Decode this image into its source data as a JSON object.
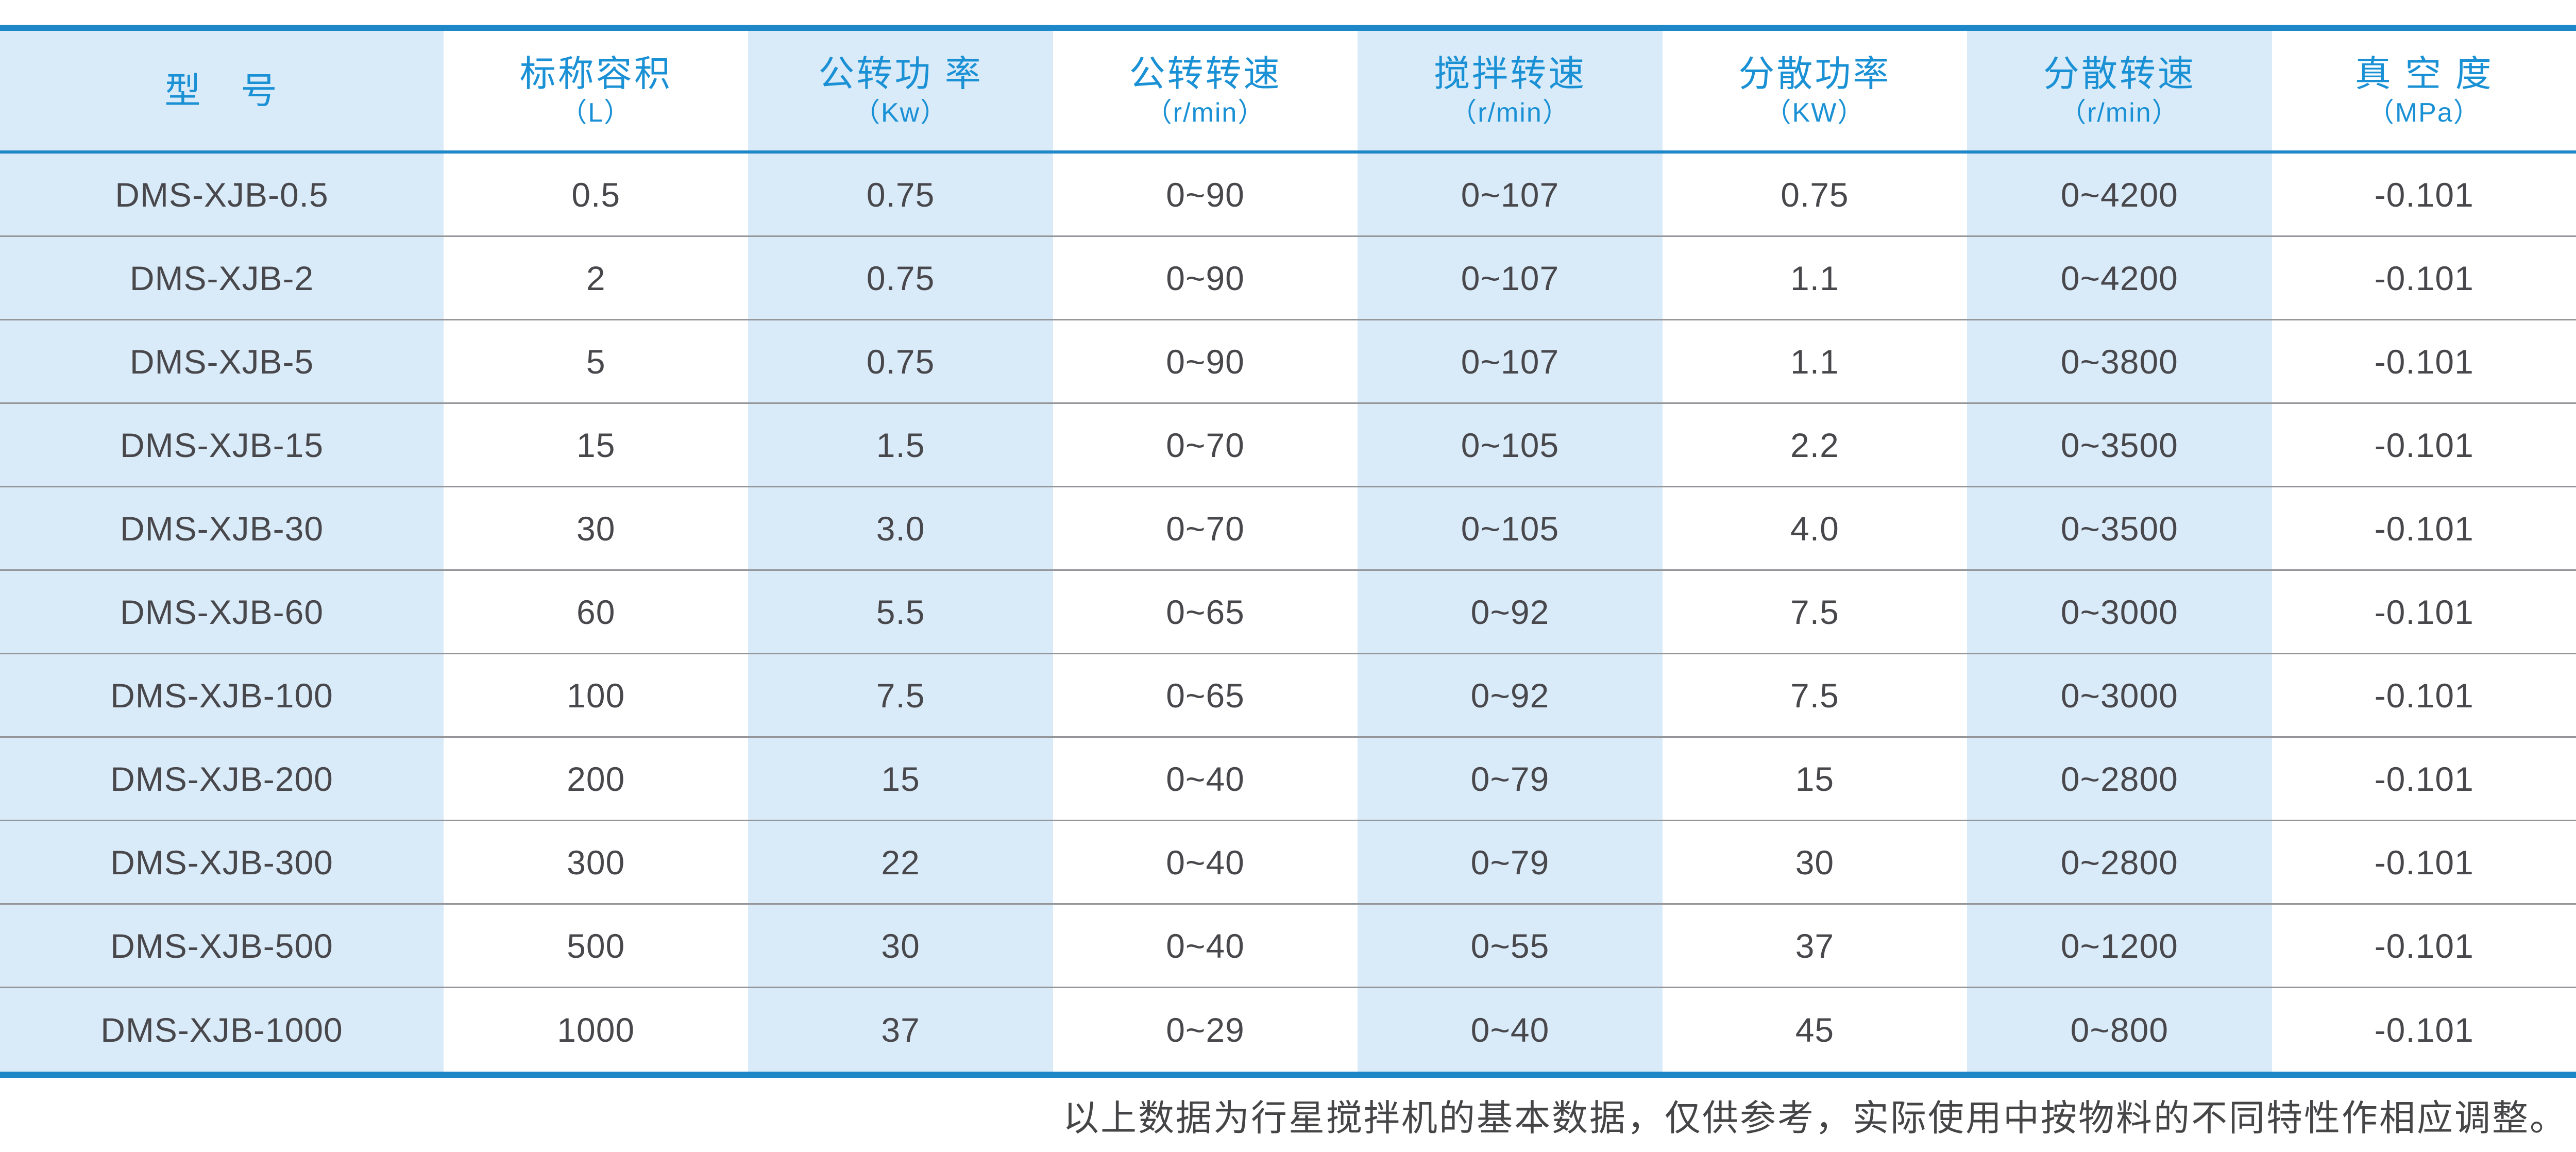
{
  "colors": {
    "accent_blue": "#1d87c8",
    "header_text_blue": "#1a90d5",
    "stripe_light_blue": "#d9eaf8",
    "stripe_white": "#ffffff",
    "data_text": "#48484c",
    "row_separator": "#94969a",
    "note_text": "#454547"
  },
  "table": {
    "columns": [
      {
        "title": "型　号",
        "unit": ""
      },
      {
        "title": "标称容积",
        "unit": "（L）"
      },
      {
        "title": "公转功 率",
        "unit": "（Kw）"
      },
      {
        "title": "公转转速",
        "unit": "（r/min）"
      },
      {
        "title": "搅拌转速",
        "unit": "（r/min）"
      },
      {
        "title": "分散功率",
        "unit": "（KW）"
      },
      {
        "title": "分散转速",
        "unit": "（r/min）"
      },
      {
        "title": "真 空 度",
        "unit": "（MPa）"
      }
    ],
    "rows": [
      [
        "DMS-XJB-0.5",
        "0.5",
        "0.75",
        "0~90",
        "0~107",
        "0.75",
        "0~4200",
        "-0.101"
      ],
      [
        "DMS-XJB-2",
        "2",
        "0.75",
        "0~90",
        "0~107",
        "1.1",
        "0~4200",
        "-0.101"
      ],
      [
        "DMS-XJB-5",
        "5",
        "0.75",
        "0~90",
        "0~107",
        "1.1",
        "0~3800",
        "-0.101"
      ],
      [
        "DMS-XJB-15",
        "15",
        "1.5",
        "0~70",
        "0~105",
        "2.2",
        "0~3500",
        "-0.101"
      ],
      [
        "DMS-XJB-30",
        "30",
        "3.0",
        "0~70",
        "0~105",
        "4.0",
        "0~3500",
        "-0.101"
      ],
      [
        "DMS-XJB-60",
        "60",
        "5.5",
        "0~65",
        "0~92",
        "7.5",
        "0~3000",
        "-0.101"
      ],
      [
        "DMS-XJB-100",
        "100",
        "7.5",
        "0~65",
        "0~92",
        "7.5",
        "0~3000",
        "-0.101"
      ],
      [
        "DMS-XJB-200",
        "200",
        "15",
        "0~40",
        "0~79",
        "15",
        "0~2800",
        "-0.101"
      ],
      [
        "DMS-XJB-300",
        "300",
        "22",
        "0~40",
        "0~79",
        "30",
        "0~2800",
        "-0.101"
      ],
      [
        "DMS-XJB-500",
        "500",
        "30",
        "0~40",
        "0~55",
        "37",
        "0~1200",
        "-0.101"
      ],
      [
        "DMS-XJB-1000",
        "1000",
        "37",
        "0~29",
        "0~40",
        "45",
        "0~800",
        "-0.101"
      ]
    ]
  },
  "footer": {
    "note": "以上数据为行星搅拌机的基本数据，仅供参考，实际使用中按物料的不同特性作相应调整。"
  }
}
